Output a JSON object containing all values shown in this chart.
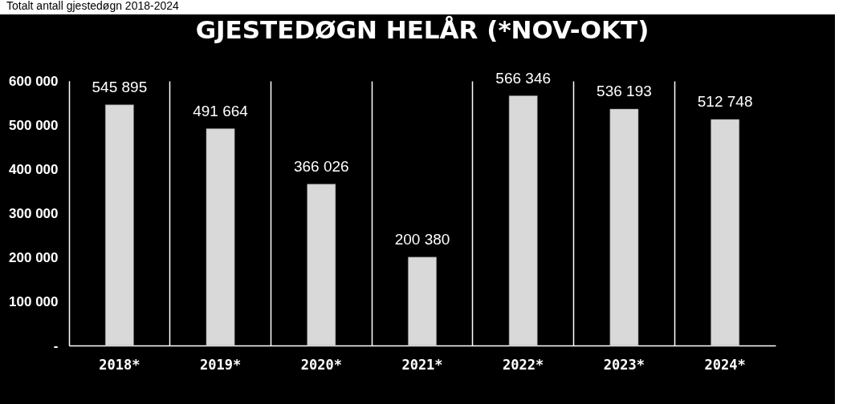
{
  "chart_data": {
    "type": "bar",
    "title": "GJESTEDØGN HELÅR (*NOV-OKT)",
    "annotations": [
      "Totalt antall gjestedøgn 2018-2024"
    ],
    "categories": [
      "2018*",
      "2019*",
      "2020*",
      "2021*",
      "2022*",
      "2023*",
      "2024*"
    ],
    "values": [
      545895,
      491664,
      366026,
      200380,
      566346,
      536193,
      512748
    ],
    "value_labels": [
      "545 895",
      "491 664",
      "366 026",
      "200 380",
      "566 346",
      "536 193",
      "512 748"
    ],
    "color": "#d9d9d9",
    "ylim": [
      0,
      600000
    ],
    "yticks": [
      {
        "value": 0,
        "label": "-"
      },
      {
        "value": 100000,
        "label": "100 000"
      },
      {
        "value": 200000,
        "label": "200 000"
      },
      {
        "value": 300000,
        "label": "300 000"
      },
      {
        "value": 400000,
        "label": "400 000"
      },
      {
        "value": 500000,
        "label": "500 000"
      },
      {
        "value": 600000,
        "label": "600 000"
      }
    ],
    "grid": "x"
  }
}
